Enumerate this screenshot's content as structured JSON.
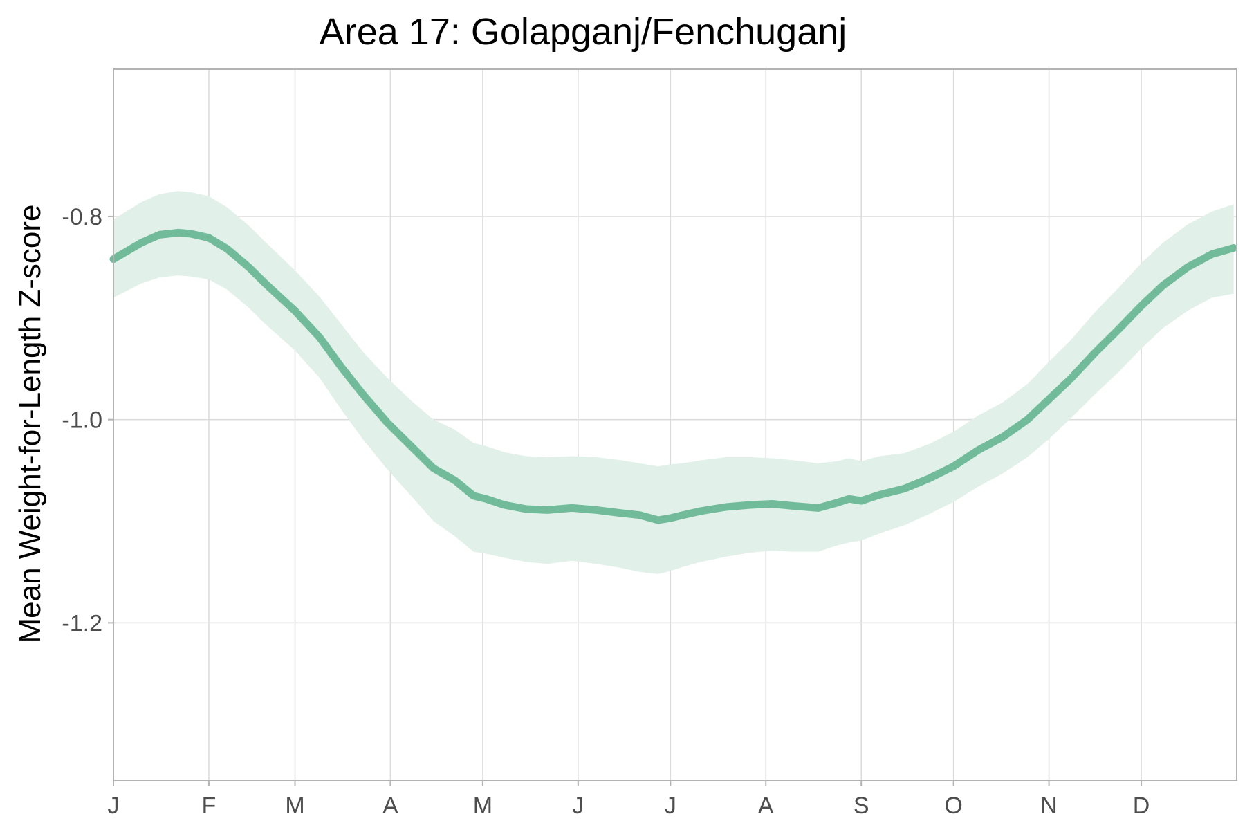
{
  "chart_data": {
    "type": "line",
    "title": "Area 17: Golapganj/Fenchuganj",
    "xlabel": "",
    "ylabel": "Mean Weight-for-Length Z-score",
    "x_tick_labels": [
      "J",
      "F",
      "M",
      "A",
      "M",
      "J",
      "J",
      "A",
      "S",
      "O",
      "N",
      "D"
    ],
    "x_tick_days": [
      1,
      32,
      60,
      91,
      121,
      152,
      182,
      213,
      244,
      274,
      305,
      335
    ],
    "xlim": [
      1,
      366
    ],
    "ylim": [
      -1.355,
      -0.655
    ],
    "y_ticks": [
      -0.8,
      -1.0,
      -1.2
    ],
    "y_tick_labels": [
      "-0.8",
      "-1.0",
      "-1.2"
    ],
    "grid": true,
    "colors": {
      "line": "#71bb9b",
      "band": "#e1f0e8",
      "grid": "#dcdcdc",
      "frame": "#b3b3b3"
    },
    "series": [
      {
        "x": [
          1,
          10,
          16,
          22,
          26,
          32,
          38,
          45,
          50,
          60,
          68,
          75,
          82,
          90,
          98,
          105,
          112,
          118,
          122,
          128,
          135,
          142,
          150,
          158,
          166,
          172,
          178,
          182,
          186,
          192,
          200,
          208,
          215,
          222,
          230,
          236,
          240,
          244,
          250,
          258,
          266,
          274,
          282,
          290,
          298,
          305,
          312,
          320,
          328,
          335,
          342,
          350,
          358,
          365
        ],
        "y": [
          -0.842,
          -0.826,
          -0.818,
          -0.816,
          -0.817,
          -0.821,
          -0.832,
          -0.85,
          -0.865,
          -0.893,
          -0.919,
          -0.948,
          -0.975,
          -1.003,
          -1.027,
          -1.048,
          -1.06,
          -1.075,
          -1.078,
          -1.084,
          -1.088,
          -1.089,
          -1.087,
          -1.089,
          -1.092,
          -1.094,
          -1.099,
          -1.097,
          -1.094,
          -1.09,
          -1.086,
          -1.084,
          -1.083,
          -1.085,
          -1.087,
          -1.082,
          -1.078,
          -1.08,
          -1.074,
          -1.068,
          -1.058,
          -1.046,
          -1.03,
          -1.017,
          -1.0,
          -0.98,
          -0.96,
          -0.934,
          -0.91,
          -0.888,
          -0.868,
          -0.85,
          -0.837,
          -0.831
        ],
        "lower": [
          -0.88,
          -0.866,
          -0.86,
          -0.858,
          -0.859,
          -0.862,
          -0.872,
          -0.89,
          -0.905,
          -0.932,
          -0.959,
          -0.99,
          -1.019,
          -1.049,
          -1.076,
          -1.1,
          -1.115,
          -1.13,
          -1.132,
          -1.136,
          -1.14,
          -1.142,
          -1.139,
          -1.142,
          -1.146,
          -1.15,
          -1.152,
          -1.149,
          -1.145,
          -1.14,
          -1.135,
          -1.131,
          -1.129,
          -1.13,
          -1.13,
          -1.124,
          -1.121,
          -1.119,
          -1.112,
          -1.104,
          -1.093,
          -1.081,
          -1.066,
          -1.053,
          -1.037,
          -1.019,
          -0.999,
          -0.975,
          -0.952,
          -0.93,
          -0.91,
          -0.893,
          -0.88,
          -0.876
        ],
        "upper": [
          -0.803,
          -0.786,
          -0.778,
          -0.775,
          -0.776,
          -0.78,
          -0.791,
          -0.809,
          -0.824,
          -0.853,
          -0.879,
          -0.906,
          -0.933,
          -0.959,
          -0.982,
          -1.0,
          -1.01,
          -1.023,
          -1.026,
          -1.032,
          -1.036,
          -1.037,
          -1.036,
          -1.037,
          -1.04,
          -1.043,
          -1.046,
          -1.044,
          -1.043,
          -1.04,
          -1.037,
          -1.037,
          -1.038,
          -1.04,
          -1.043,
          -1.041,
          -1.038,
          -1.041,
          -1.036,
          -1.033,
          -1.024,
          -1.012,
          -0.996,
          -0.983,
          -0.965,
          -0.943,
          -0.922,
          -0.894,
          -0.869,
          -0.846,
          -0.826,
          -0.808,
          -0.795,
          -0.788
        ]
      }
    ]
  }
}
